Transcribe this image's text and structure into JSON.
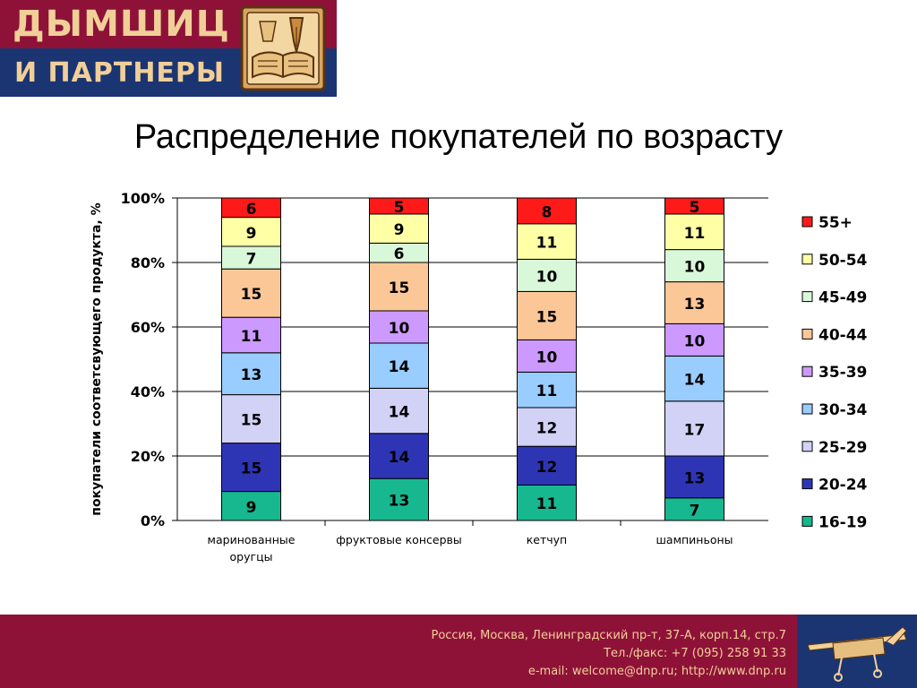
{
  "logo": {
    "line1": "ДЫМШИЦ",
    "line2": "И ПАРТНЕРЫ",
    "emblem_icon": "pen-book-emblem-icon"
  },
  "title": "Распределение покупателей по возрасту",
  "chart_data": {
    "type": "bar",
    "stacked": true,
    "percent": true,
    "title": "Распределение покупателей по возрасту",
    "ylabel": "покупатели соответсвующего продукта, %",
    "xlabel": "",
    "ylim": [
      0,
      100
    ],
    "yticks": [
      "0%",
      "20%",
      "40%",
      "60%",
      "80%",
      "100%"
    ],
    "grid": true,
    "legend": "right",
    "categories": [
      [
        "маринованные",
        "оругцы"
      ],
      [
        "фруктовые консервы"
      ],
      [
        "кетчуп"
      ],
      [
        "шампиньоны"
      ]
    ],
    "series": [
      {
        "name": "16-19",
        "color": "#17b890",
        "values": [
          9,
          13,
          11,
          7
        ]
      },
      {
        "name": "20-24",
        "color": "#2e35b5",
        "values": [
          15,
          14,
          12,
          13
        ]
      },
      {
        "name": "25-29",
        "color": "#d2d2f6",
        "values": [
          15,
          14,
          12,
          17
        ]
      },
      {
        "name": "30-34",
        "color": "#99ccff",
        "values": [
          13,
          14,
          11,
          14
        ]
      },
      {
        "name": "35-39",
        "color": "#cc99ff",
        "values": [
          11,
          10,
          10,
          10
        ]
      },
      {
        "name": "40-44",
        "color": "#fcc797",
        "values": [
          15,
          15,
          15,
          13
        ]
      },
      {
        "name": "45-49",
        "color": "#d9f8da",
        "values": [
          7,
          6,
          10,
          10
        ]
      },
      {
        "name": "50-54",
        "color": "#ffffa6",
        "values": [
          9,
          9,
          11,
          11
        ]
      },
      {
        "name": "55+",
        "color": "#ff1a1a",
        "values": [
          6,
          5,
          8,
          5
        ]
      }
    ]
  },
  "footer": {
    "address": "Россия, Москва, Ленинградский пр-т, 37-А, корп.14, стр.7",
    "phone": "Тел./факс: +7 (095) 258 91 33",
    "contacts": "e-mail: welcome@dnp.ru; http://www.dnp.ru",
    "emblem_icon": "airplane-sketch-icon"
  }
}
